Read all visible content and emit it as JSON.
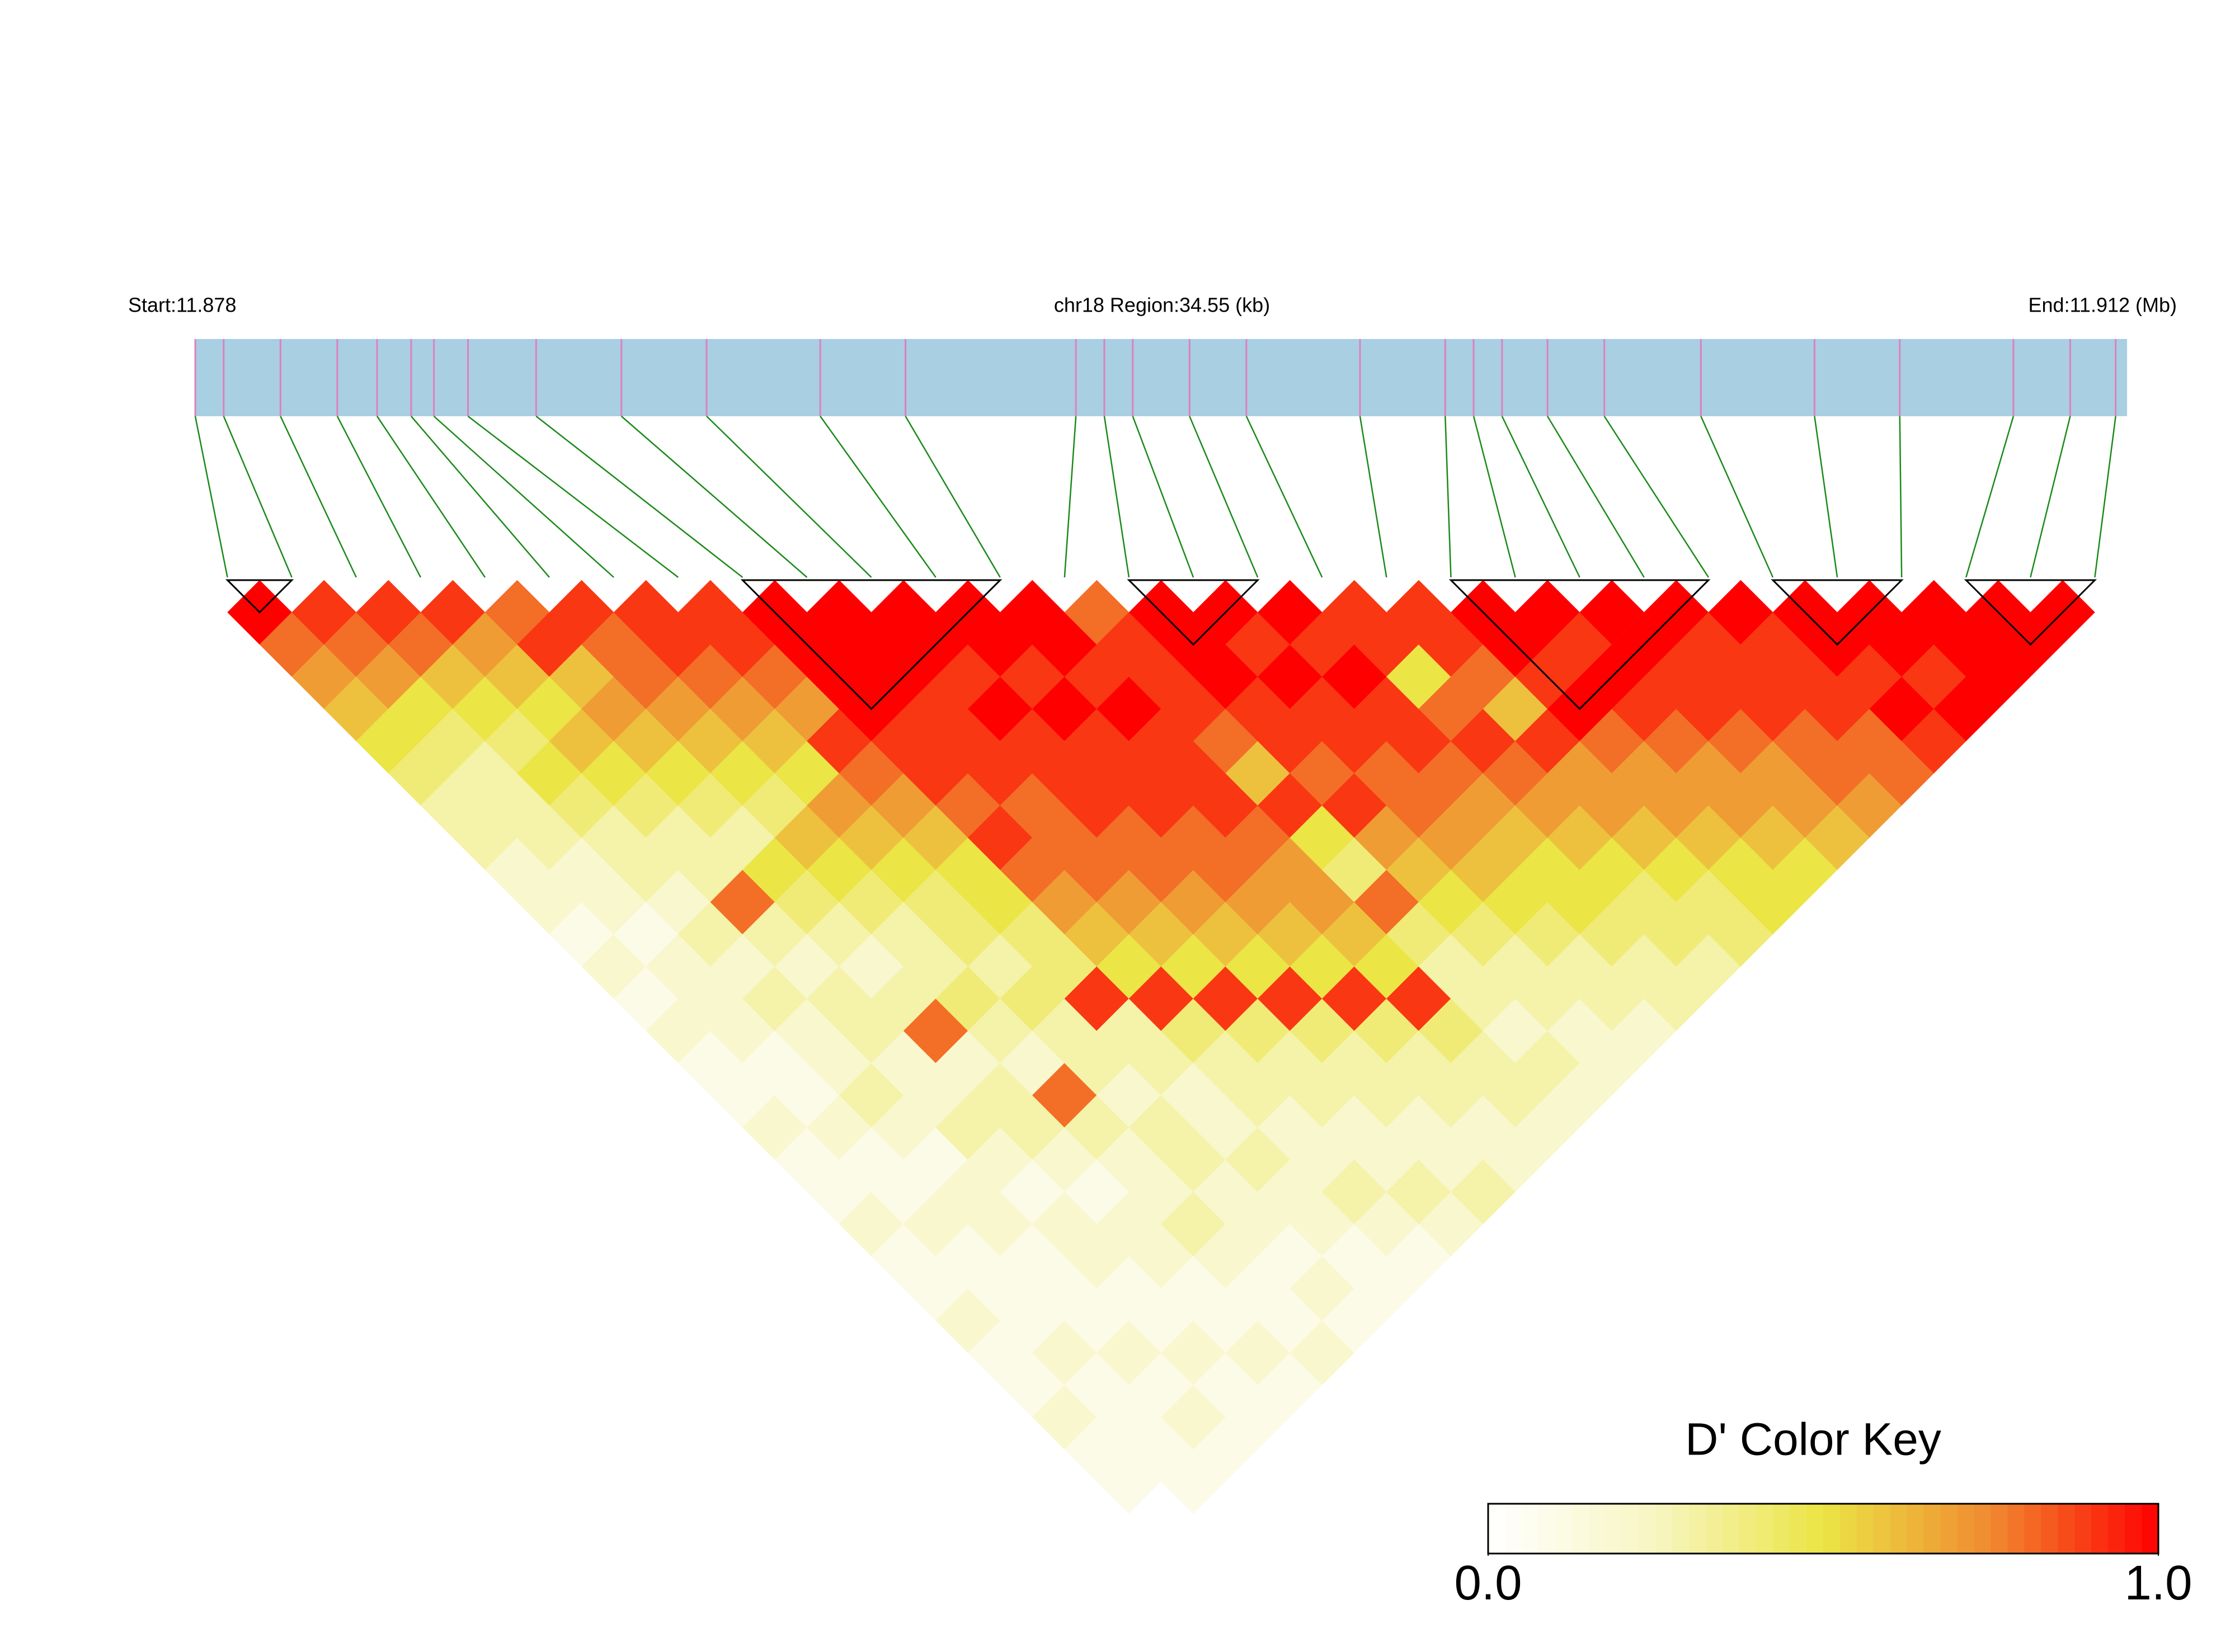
{
  "chart_data": {
    "type": "ld_heatmap",
    "start_label": "Start:11.878",
    "region_label": "chr18 Region:34.55 (kb)",
    "end_label": "End:11.912 (Mb)",
    "xlim": [
      11.878,
      11.912
    ],
    "positions": [
      11.878,
      11.8785,
      11.8795,
      11.8805,
      11.8812,
      11.8818,
      11.8822,
      11.8828,
      11.884,
      11.8855,
      11.887,
      11.889,
      11.8905,
      11.8935,
      11.894,
      11.8945,
      11.8955,
      11.8965,
      11.8985,
      11.9,
      11.9005,
      11.901,
      11.9018,
      11.9028,
      11.9045,
      11.9065,
      11.908,
      11.91,
      11.911,
      11.9118
    ],
    "bar_color": "#a8cfe2",
    "snp_line_color": "#e07fc0",
    "connector_color": "#1a8a1a",
    "block_color": "#000000",
    "matrix": [
      [
        1.0,
        0.8,
        0.7,
        0.6,
        0.5,
        0.4,
        0.3,
        0.3,
        0.2,
        0.2,
        0.1,
        0.2,
        0.1,
        0.2,
        0.1,
        0.1,
        0.2,
        0.1,
        0.1,
        0.2,
        0.1,
        0.1,
        0.2,
        0.1,
        0.1,
        0.2,
        0.1,
        0.1,
        0.0
      ],
      [
        0.9,
        0.8,
        0.7,
        0.5,
        0.4,
        0.3,
        0.3,
        0.3,
        0.2,
        0.2,
        0.1,
        0.2,
        0.2,
        0.2,
        0.1,
        0.1,
        0.2,
        0.1,
        0.1,
        0.2,
        0.1,
        0.1,
        0.1,
        0.2,
        0.1,
        0.1,
        0.1,
        0.1
      ],
      [
        0.9,
        0.8,
        0.6,
        0.5,
        0.4,
        0.5,
        0.4,
        0.3,
        0.3,
        0.2,
        0.3,
        0.2,
        0.3,
        0.2,
        0.2,
        0.3,
        0.2,
        0.1,
        0.2,
        0.2,
        0.1,
        0.1,
        0.1,
        0.2,
        0.1,
        0.2,
        0.1
      ],
      [
        0.9,
        0.7,
        0.6,
        0.5,
        0.6,
        0.5,
        0.4,
        0.3,
        0.3,
        0.8,
        0.3,
        0.2,
        0.3,
        0.3,
        0.2,
        0.2,
        0.3,
        0.2,
        0.1,
        0.2,
        0.2,
        0.1,
        0.1,
        0.2,
        0.1,
        0.1
      ],
      [
        0.8,
        0.9,
        0.6,
        0.7,
        0.6,
        0.5,
        0.4,
        0.3,
        0.5,
        0.4,
        0.3,
        0.2,
        0.3,
        0.8,
        0.2,
        0.3,
        0.3,
        0.2,
        0.1,
        0.2,
        0.2,
        0.1,
        0.1,
        0.2,
        0.1
      ],
      [
        0.9,
        0.8,
        0.8,
        0.7,
        0.6,
        0.5,
        0.4,
        0.6,
        0.5,
        0.4,
        0.3,
        0.3,
        0.4,
        0.3,
        0.2,
        0.8,
        0.3,
        0.2,
        0.2,
        0.3,
        0.2,
        0.1,
        0.1,
        0.2
      ],
      [
        0.9,
        0.9,
        0.8,
        0.7,
        0.6,
        0.5,
        0.7,
        0.6,
        0.5,
        0.4,
        0.4,
        0.3,
        0.4,
        0.3,
        0.3,
        0.2,
        0.3,
        0.3,
        0.2,
        0.2,
        0.1,
        0.2,
        0.1
      ],
      [
        0.9,
        0.9,
        0.8,
        0.7,
        0.9,
        0.8,
        0.7,
        0.6,
        0.5,
        0.5,
        0.4,
        0.4,
        0.9,
        0.3,
        0.3,
        0.2,
        0.2,
        0.3,
        0.2,
        0.2,
        0.1,
        0.1
      ],
      [
        1.0,
        1.0,
        1.0,
        1.0,
        0.9,
        0.9,
        0.8,
        0.9,
        0.8,
        0.7,
        0.6,
        0.5,
        0.9,
        0.4,
        0.3,
        0.3,
        0.2,
        0.2,
        0.3,
        0.2,
        0.1
      ],
      [
        1.0,
        1.0,
        1.0,
        0.9,
        0.9,
        0.9,
        0.8,
        0.8,
        0.8,
        0.7,
        0.6,
        0.5,
        0.9,
        0.4,
        0.3,
        0.3,
        0.2,
        0.2,
        0.3,
        0.2
      ],
      [
        1.0,
        1.0,
        0.9,
        1.0,
        0.9,
        0.9,
        0.9,
        0.8,
        0.8,
        0.7,
        0.6,
        0.5,
        0.9,
        0.4,
        0.3,
        0.3,
        0.2,
        0.2,
        0.3
      ],
      [
        1.0,
        1.0,
        0.9,
        1.0,
        0.9,
        0.9,
        0.9,
        0.8,
        0.8,
        0.7,
        0.6,
        0.5,
        0.9,
        0.4,
        0.3,
        0.3,
        0.2,
        0.2
      ],
      [
        1.0,
        1.0,
        0.9,
        1.0,
        0.9,
        0.9,
        0.9,
        0.8,
        0.7,
        0.7,
        0.6,
        0.5,
        0.9,
        0.4,
        0.3,
        0.3,
        0.2
      ],
      [
        0.8,
        0.9,
        0.9,
        0.9,
        0.8,
        0.6,
        0.9,
        0.5,
        0.4,
        0.8,
        0.4,
        0.3,
        0.3,
        0.2,
        0.3,
        0.2
      ],
      [
        1.0,
        1.0,
        1.0,
        0.9,
        0.9,
        0.8,
        0.9,
        0.7,
        0.6,
        0.5,
        0.4,
        0.3,
        0.3,
        0.2,
        0.2
      ],
      [
        1.0,
        0.9,
        1.0,
        0.9,
        0.9,
        0.8,
        0.8,
        0.7,
        0.6,
        0.5,
        0.4,
        0.3,
        0.3,
        0.2
      ],
      [
        1.0,
        0.9,
        1.0,
        0.9,
        0.9,
        0.8,
        0.7,
        0.6,
        0.5,
        0.5,
        0.4,
        0.3,
        0.3
      ],
      [
        0.9,
        0.9,
        0.5,
        0.8,
        0.9,
        0.8,
        0.7,
        0.6,
        0.5,
        0.4,
        0.4,
        0.3
      ],
      [
        0.9,
        0.9,
        0.8,
        0.6,
        0.9,
        0.7,
        0.7,
        0.6,
        0.5,
        0.4,
        0.4
      ],
      [
        1.0,
        1.0,
        0.9,
        1.0,
        0.8,
        0.7,
        0.7,
        0.6,
        0.5,
        0.5
      ],
      [
        1.0,
        0.9,
        1.0,
        0.9,
        0.8,
        0.7,
        0.7,
        0.6,
        0.5
      ],
      [
        1.0,
        1.0,
        0.9,
        0.9,
        0.8,
        0.7,
        0.7,
        0.6
      ],
      [
        1.0,
        0.9,
        0.9,
        0.9,
        0.8,
        0.8,
        0.7
      ],
      [
        1.0,
        0.9,
        0.9,
        0.9,
        0.8,
        0.8
      ],
      [
        1.0,
        1.0,
        0.9,
        1.0,
        0.9
      ],
      [
        1.0,
        1.0,
        0.9,
        1.0
      ],
      [
        1.0,
        1.0,
        1.0
      ],
      [
        1.0,
        1.0
      ],
      [
        1.0
      ]
    ],
    "blocks": [
      [
        0,
        1
      ],
      [
        8,
        12
      ],
      [
        14,
        16
      ],
      [
        19,
        23
      ],
      [
        24,
        26
      ],
      [
        27,
        29
      ]
    ],
    "color_scale": [
      "#ffffff",
      "#f8f5c2",
      "#ebe545",
      "#f08a30",
      "#ff0000"
    ],
    "key_title": "D' Color Key",
    "key_lim": [
      0,
      1
    ],
    "key_ticks": [
      {
        "value": 0,
        "label": "0.0"
      },
      {
        "value": 1,
        "label": "1.0"
      }
    ]
  }
}
